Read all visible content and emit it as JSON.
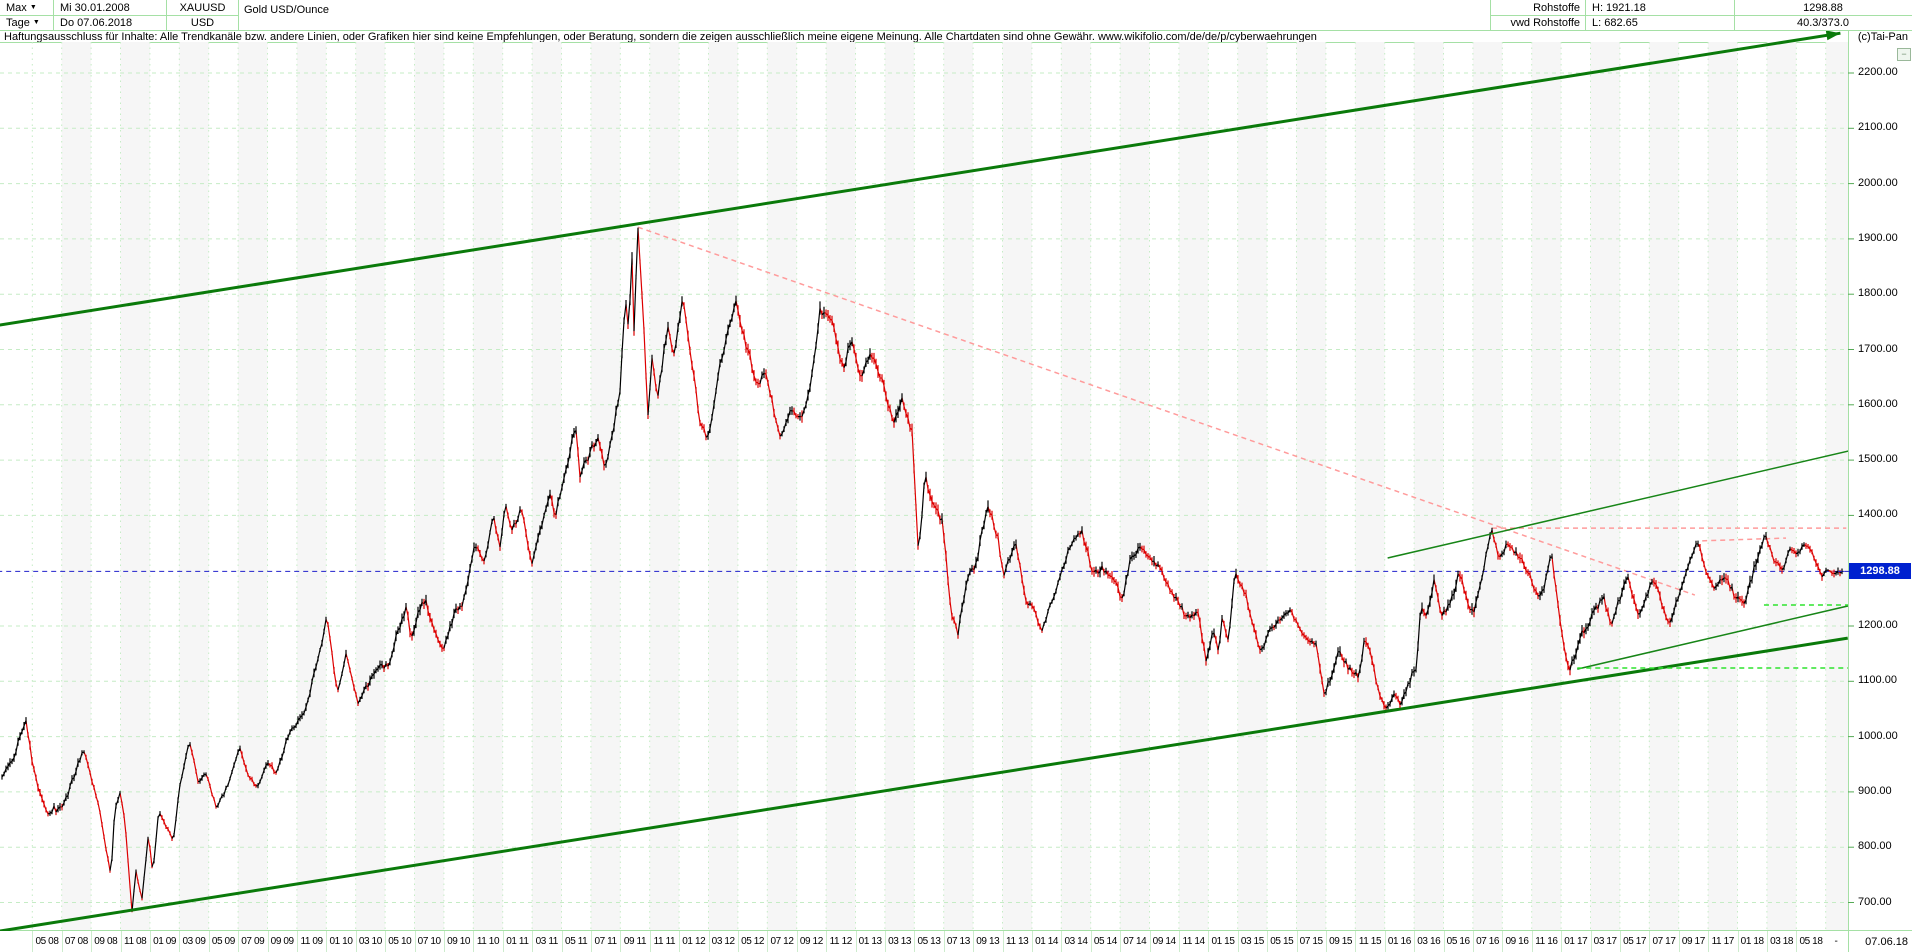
{
  "header": {
    "range_label": "Max",
    "range_caret": "▼",
    "period_label": "Tage",
    "period_caret": "▼",
    "date_from": "Mi 30.01.2008",
    "date_to": "Do 07.06.2018",
    "symbol": "XAUUSD",
    "currency": "USD",
    "instrument": "Gold USD/Ounce",
    "group": "Rohstoffe",
    "provider": "vwd Rohstoffe",
    "high_label": "H: 1921.18",
    "low_label": "L: 682.65",
    "last_price": "1298.88",
    "stats": "40.3/373.0",
    "copyright": "(c)Tai-Pan",
    "collapse_icon_glyph": "−"
  },
  "disclaimer": "Haftungsausschluss für Inhalte: Alle Trendkanäle bzw. andere Linien, oder Grafiken hier sind keine Empfehlungen, oder Beratung, sondern die zeigen ausschließlich meine eigene Meinung. Alle Chartdaten sind ohne Gewähr.  www.wikifolio.com/de/de/p/cyberwaehrungen",
  "scale": {
    "labels": [
      "2200.00",
      "2100.00",
      "2000.00",
      "1900.00",
      "1800.00",
      "1700.00",
      "1600.00",
      "1500.00",
      "1400.00",
      "1200.00",
      "1100.00",
      "1000.00",
      "900.00",
      "800.00",
      "700.00"
    ],
    "current_price": "1298.88",
    "axis_dash": "-",
    "end_date": "07.06.18"
  },
  "x_axis": {
    "labels": [
      "05 08",
      "07 08",
      "09 08",
      "11 08",
      "01 09",
      "03 09",
      "05 09",
      "07 09",
      "09 09",
      "11 09",
      "01 10",
      "03 10",
      "05 10",
      "07 10",
      "09 10",
      "11 10",
      "01 11",
      "03 11",
      "05 11",
      "07 11",
      "09 11",
      "11 11",
      "01 12",
      "03 12",
      "05 12",
      "07 12",
      "09 12",
      "11 12",
      "01 13",
      "03 13",
      "05 13",
      "07 13",
      "09 13",
      "11 13",
      "01 14",
      "03 14",
      "05 14",
      "07 14",
      "09 14",
      "11 14",
      "01 15",
      "03 15",
      "05 15",
      "07 15",
      "09 15",
      "11 15",
      "01 16",
      "03 16",
      "05 16",
      "07 16",
      "09 16",
      "11 16",
      "01 17",
      "03 17",
      "05 17",
      "07 17",
      "09 17",
      "11 17",
      "01 18",
      "03 18",
      "05 18"
    ]
  },
  "chart_data": {
    "type": "line",
    "title": "Gold USD/Ounce",
    "symbol": "XAUUSD",
    "x_unit": "months since 2008-01 (0 = Jan 2008)",
    "x_range": [
      0.97,
      125.22
    ],
    "ylim": [
      650,
      2280
    ],
    "grid_levels": [
      700,
      800,
      900,
      1000,
      1100,
      1200,
      1400,
      1500,
      1600,
      1700,
      1800,
      1900,
      2000,
      2100,
      2200
    ],
    "high": 1921.18,
    "low": 682.65,
    "last": 1298.88,
    "up_color": "#000000",
    "down_color": "#dd0000",
    "anchors": [
      [
        0.97,
        922
      ],
      [
        1.9,
        972
      ],
      [
        2.55,
        1028
      ],
      [
        3.2,
        928
      ],
      [
        4.0,
        858
      ],
      [
        5.2,
        882
      ],
      [
        6.5,
        978
      ],
      [
        7.5,
        875
      ],
      [
        8.05,
        790
      ],
      [
        8.35,
        748
      ],
      [
        8.6,
        868
      ],
      [
        8.95,
        898
      ],
      [
        9.3,
        848
      ],
      [
        9.78,
        682.65
      ],
      [
        10.05,
        758
      ],
      [
        10.45,
        705
      ],
      [
        10.9,
        822
      ],
      [
        11.2,
        752
      ],
      [
        11.6,
        868
      ],
      [
        12.2,
        832
      ],
      [
        12.6,
        810
      ],
      [
        13.0,
        905
      ],
      [
        13.67,
        993
      ],
      [
        14.3,
        915
      ],
      [
        14.8,
        932
      ],
      [
        15.55,
        868
      ],
      [
        16.5,
        928
      ],
      [
        17.1,
        978
      ],
      [
        17.8,
        922
      ],
      [
        18.3,
        910
      ],
      [
        19.0,
        955
      ],
      [
        19.6,
        932
      ],
      [
        20.3,
        995
      ],
      [
        21.5,
        1048
      ],
      [
        22.5,
        1142
      ],
      [
        23.05,
        1218
      ],
      [
        23.75,
        1078
      ],
      [
        24.35,
        1152
      ],
      [
        25.2,
        1055
      ],
      [
        26.3,
        1118
      ],
      [
        27.3,
        1138
      ],
      [
        28.45,
        1238
      ],
      [
        28.75,
        1185
      ],
      [
        29.7,
        1255
      ],
      [
        30.3,
        1198
      ],
      [
        30.95,
        1158
      ],
      [
        31.8,
        1228
      ],
      [
        32.3,
        1240
      ],
      [
        33.1,
        1340
      ],
      [
        33.8,
        1318
      ],
      [
        34.35,
        1400
      ],
      [
        34.8,
        1342
      ],
      [
        35.2,
        1420
      ],
      [
        35.6,
        1372
      ],
      [
        36.3,
        1408
      ],
      [
        36.95,
        1312
      ],
      [
        38.2,
        1432
      ],
      [
        38.6,
        1398
      ],
      [
        39.95,
        1565
      ],
      [
        40.25,
        1476
      ],
      [
        40.9,
        1512
      ],
      [
        41.5,
        1542
      ],
      [
        41.97,
        1482
      ],
      [
        43.0,
        1625
      ],
      [
        43.32,
        1795
      ],
      [
        43.6,
        1732
      ],
      [
        43.78,
        1898
      ],
      [
        43.9,
        1712
      ],
      [
        44.2,
        1921.18
      ],
      [
        44.55,
        1762
      ],
      [
        44.88,
        1578
      ],
      [
        45.15,
        1682
      ],
      [
        45.55,
        1618
      ],
      [
        46.25,
        1742
      ],
      [
        46.6,
        1678
      ],
      [
        47.25,
        1792
      ],
      [
        47.85,
        1678
      ],
      [
        48.5,
        1562
      ],
      [
        48.98,
        1538
      ],
      [
        49.6,
        1652
      ],
      [
        50.3,
        1722
      ],
      [
        50.88,
        1788
      ],
      [
        51.6,
        1698
      ],
      [
        52.4,
        1638
      ],
      [
        52.9,
        1662
      ],
      [
        53.9,
        1535
      ],
      [
        54.6,
        1598
      ],
      [
        55.3,
        1568
      ],
      [
        55.9,
        1632
      ],
      [
        56.6,
        1775
      ],
      [
        57.4,
        1752
      ],
      [
        58.15,
        1668
      ],
      [
        58.8,
        1712
      ],
      [
        59.4,
        1652
      ],
      [
        59.95,
        1692
      ],
      [
        60.6,
        1658
      ],
      [
        61.6,
        1572
      ],
      [
        62.2,
        1612
      ],
      [
        62.85,
        1555
      ],
      [
        63.15,
        1398
      ],
      [
        63.3,
        1330
      ],
      [
        63.75,
        1472
      ],
      [
        64.35,
        1418
      ],
      [
        64.95,
        1388
      ],
      [
        65.5,
        1228
      ],
      [
        65.98,
        1182
      ],
      [
        66.6,
        1288
      ],
      [
        67.3,
        1318
      ],
      [
        67.95,
        1420
      ],
      [
        68.7,
        1352
      ],
      [
        69.1,
        1298
      ],
      [
        69.9,
        1350
      ],
      [
        70.6,
        1248
      ],
      [
        71.2,
        1232
      ],
      [
        71.65,
        1188
      ],
      [
        72.15,
        1232
      ],
      [
        72.6,
        1258
      ],
      [
        73.45,
        1332
      ],
      [
        74.35,
        1380
      ],
      [
        75.15,
        1288
      ],
      [
        75.9,
        1302
      ],
      [
        76.5,
        1288
      ],
      [
        77.15,
        1244
      ],
      [
        77.65,
        1322
      ],
      [
        78.5,
        1338
      ],
      [
        79.6,
        1308
      ],
      [
        80.2,
        1278
      ],
      [
        81.5,
        1215
      ],
      [
        82.3,
        1225
      ],
      [
        82.88,
        1132
      ],
      [
        83.35,
        1198
      ],
      [
        83.7,
        1142
      ],
      [
        83.98,
        1218
      ],
      [
        84.35,
        1172
      ],
      [
        84.78,
        1297
      ],
      [
        85.6,
        1252
      ],
      [
        86.55,
        1148
      ],
      [
        87.35,
        1202
      ],
      [
        88.6,
        1225
      ],
      [
        89.5,
        1180
      ],
      [
        90.35,
        1168
      ],
      [
        90.88,
        1080
      ],
      [
        91.35,
        1098
      ],
      [
        91.85,
        1158
      ],
      [
        92.55,
        1122
      ],
      [
        93.25,
        1108
      ],
      [
        93.65,
        1185
      ],
      [
        94.85,
        1062
      ],
      [
        95.15,
        1046
      ],
      [
        95.55,
        1078
      ],
      [
        96.05,
        1062
      ],
      [
        96.6,
        1092
      ],
      [
        97.15,
        1128
      ],
      [
        97.48,
        1247
      ],
      [
        97.85,
        1208
      ],
      [
        98.38,
        1282
      ],
      [
        98.9,
        1212
      ],
      [
        99.5,
        1242
      ],
      [
        100.05,
        1295
      ],
      [
        101.05,
        1212
      ],
      [
        101.88,
        1322
      ],
      [
        102.28,
        1375
      ],
      [
        102.75,
        1318
      ],
      [
        103.35,
        1352
      ],
      [
        104.35,
        1322
      ],
      [
        105.18,
        1266
      ],
      [
        105.65,
        1250
      ],
      [
        106.35,
        1332
      ],
      [
        107.05,
        1182
      ],
      [
        107.55,
        1124
      ],
      [
        107.95,
        1152
      ],
      [
        108.35,
        1188
      ],
      [
        108.95,
        1212
      ],
      [
        109.9,
        1255
      ],
      [
        110.4,
        1198
      ],
      [
        110.95,
        1245
      ],
      [
        111.5,
        1286
      ],
      [
        112.35,
        1216
      ],
      [
        113.25,
        1293
      ],
      [
        113.85,
        1240
      ],
      [
        114.4,
        1206
      ],
      [
        115.35,
        1285
      ],
      [
        116.28,
        1351
      ],
      [
        116.85,
        1302
      ],
      [
        117.45,
        1267
      ],
      [
        117.95,
        1290
      ],
      [
        118.45,
        1274
      ],
      [
        119.05,
        1243
      ],
      [
        119.48,
        1236
      ],
      [
        120.15,
        1312
      ],
      [
        120.88,
        1360
      ],
      [
        121.55,
        1316
      ],
      [
        122.1,
        1306
      ],
      [
        122.55,
        1342
      ],
      [
        123.15,
        1326
      ],
      [
        123.45,
        1352
      ],
      [
        123.95,
        1338
      ],
      [
        124.45,
        1308
      ],
      [
        124.8,
        1284
      ],
      [
        125.05,
        1302
      ],
      [
        125.22,
        1298.88
      ]
    ],
    "exact_m": [
      9.78,
      44.2,
      125.22
    ],
    "trend_lines": [
      {
        "name": "channel-top",
        "style": "solid",
        "color": "#0a7a0a",
        "width": 3,
        "from": [
          0,
          1741
        ],
        "to": [
          126.0,
          2272
        ],
        "arrow": true
      },
      {
        "name": "channel-bottom",
        "style": "solid",
        "color": "#0a7a0a",
        "width": 3,
        "from": [
          0,
          645
        ],
        "to": [
          126.5,
          1178
        ]
      },
      {
        "name": "inner-channel-top",
        "style": "solid",
        "color": "#178517",
        "width": 1.5,
        "from": [
          95.2,
          1323
        ],
        "to": [
          126.8,
          1518
        ]
      },
      {
        "name": "inner-channel-bottom",
        "style": "solid",
        "color": "#178517",
        "width": 1.5,
        "from": [
          108.1,
          1122
        ],
        "to": [
          126.8,
          1238
        ]
      },
      {
        "name": "downtrend-from-2011-peak",
        "style": "dashed",
        "color": "#ff9b9b",
        "width": 1.5,
        "from": [
          44.2,
          1921.18
        ],
        "to": [
          116.1,
          1256
        ]
      },
      {
        "name": "resistance-1377",
        "style": "dashed",
        "color": "#ff9b9b",
        "width": 1.5,
        "from": [
          102.3,
          1377
        ],
        "to": [
          126.4,
          1377
        ]
      },
      {
        "name": "resistance-minor",
        "style": "dashed",
        "color": "#ff9b9b",
        "width": 1.5,
        "from": [
          116.6,
          1354
        ],
        "to": [
          122.3,
          1359
        ]
      },
      {
        "name": "support-1238",
        "style": "dashed",
        "color": "#2fe42f",
        "width": 1.5,
        "from": [
          120.8,
          1238
        ],
        "to": [
          126.6,
          1238
        ]
      },
      {
        "name": "support-1124",
        "style": "dashed",
        "color": "#2fe42f",
        "width": 1.5,
        "from": [
          108.1,
          1124
        ],
        "to": [
          126.9,
          1124
        ]
      },
      {
        "name": "last-price-line",
        "style": "dashed",
        "color": "#2020cc",
        "width": 1,
        "from": [
          0,
          1298.88
        ],
        "to": [
          126.3,
          1298.88
        ]
      }
    ],
    "legend_position": "none",
    "grid": true
  },
  "colors": {
    "grid": "#c5ecc5",
    "grid_band": "#f6f6f6",
    "border": "#a5e0a5",
    "tick": "#55aa55",
    "price_box_bg": "#0021cf",
    "price_box_text": "#ffffff"
  }
}
